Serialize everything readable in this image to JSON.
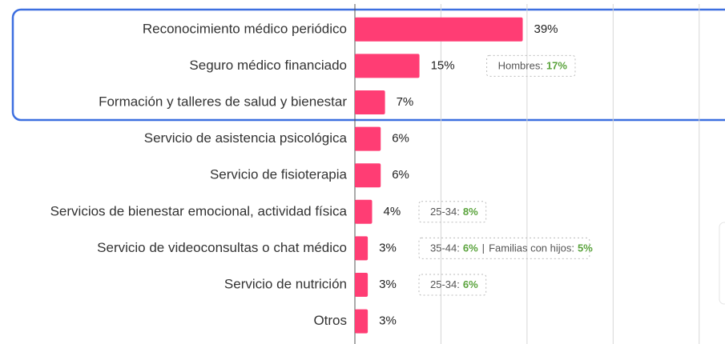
{
  "chart_data": {
    "type": "barh",
    "categories": [
      "Reconocimiento médico periódico",
      "Seguro médico financiado",
      "Formación y talleres de salud y bienestar",
      "Servicio de asistencia psicológica",
      "Servicio de fisioterapia",
      "Servicios de bienestar emocional, actividad física",
      "Servicio de videoconsultas o chat médico",
      "Servicio de nutrición",
      "Otros"
    ],
    "values": [
      39,
      15,
      7,
      6,
      6,
      4,
      3,
      3,
      3
    ],
    "value_labels": [
      "39%",
      "15%",
      "7%",
      "6%",
      "6%",
      "4%",
      "3%",
      "3%",
      "3%"
    ],
    "color": "#ff3d74",
    "xlim": [
      0,
      86
    ],
    "xticks": [
      0,
      20,
      40,
      60,
      80
    ],
    "grid": true,
    "notes": [
      null,
      [
        [
          "Hombres:",
          "17%"
        ]
      ],
      null,
      null,
      null,
      [
        [
          "25-34:",
          "8%"
        ]
      ],
      [
        [
          "35-44:",
          "6%"
        ],
        [
          "Familias con hijos:",
          "5%"
        ]
      ],
      [
        [
          "25-34:",
          "6%"
        ]
      ],
      null
    ],
    "note_separator": "|"
  }
}
